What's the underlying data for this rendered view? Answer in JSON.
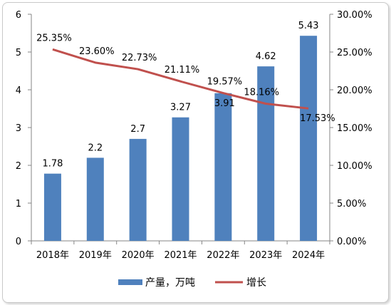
{
  "chart_data": {
    "type": "bar+line",
    "categories": [
      "2018年",
      "2019年",
      "2020年",
      "2021年",
      "2022年",
      "2023年",
      "2024年"
    ],
    "series": [
      {
        "name": "产量，万吨",
        "type": "bar",
        "axis": "left",
        "color": "#4f81bd",
        "values": [
          1.78,
          2.2,
          2.7,
          3.27,
          3.91,
          4.62,
          5.43
        ],
        "labels": [
          "1.78",
          "2.2",
          "2.7",
          "3.27",
          "3.91",
          "4.62",
          "5.43"
        ]
      },
      {
        "name": "增长",
        "type": "line",
        "axis": "right",
        "color": "#c0504d",
        "values": [
          25.35,
          23.6,
          22.73,
          21.11,
          19.57,
          18.16,
          17.53
        ],
        "labels": [
          "25.35%",
          "23.60%",
          "22.73%",
          "21.11%",
          "19.57%",
          "18.16%",
          "17.53%"
        ]
      }
    ],
    "y_left": {
      "min": 0,
      "max": 6,
      "ticks": [
        "0",
        "1",
        "2",
        "3",
        "4",
        "5",
        "6"
      ]
    },
    "y_right": {
      "min": 0,
      "max": 30,
      "ticks": [
        "0.00%",
        "5.00%",
        "10.00%",
        "15.00%",
        "20.00%",
        "25.00%",
        "30.00%"
      ]
    },
    "grid": false,
    "legend_position": "bottom"
  }
}
